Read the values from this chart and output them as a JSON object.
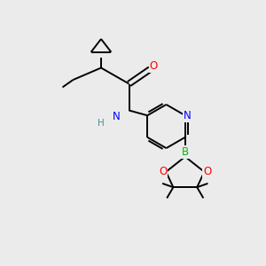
{
  "bg_color": "#ebebeb",
  "bond_color": "#000000",
  "atom_colors": {
    "O": "#ff0000",
    "N": "#0000ff",
    "B": "#00bb00",
    "H": "#4a9090",
    "C": "#000000"
  },
  "bond_width": 1.4,
  "font_size": 8.5
}
